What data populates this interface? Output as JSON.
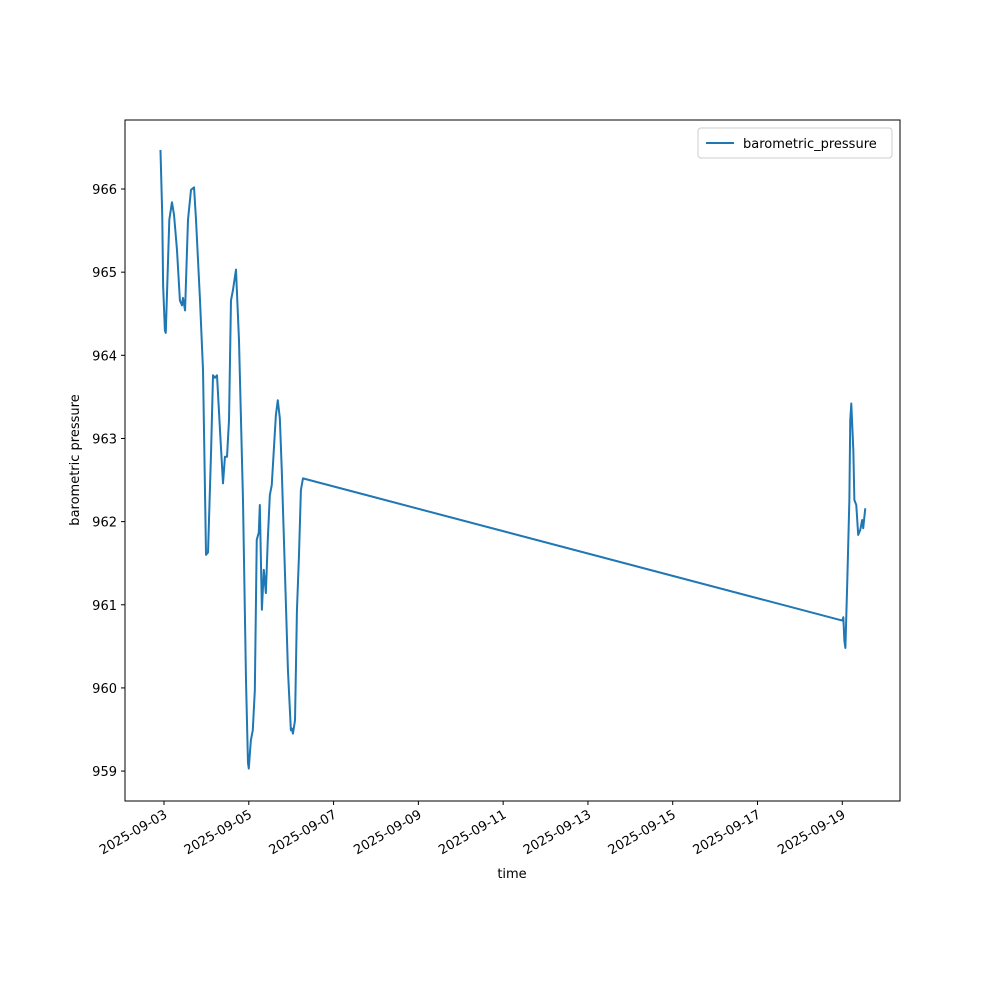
{
  "chart_data": {
    "type": "line",
    "x_label": "time",
    "y_label": "barometric pressure",
    "legend": "upper right",
    "xlim": [
      "2025-09-02 01:55",
      "2025-09-20 08:40"
    ],
    "xticks": [
      "2025-09-03",
      "2025-09-05",
      "2025-09-07",
      "2025-09-09",
      "2025-09-11",
      "2025-09-13",
      "2025-09-15",
      "2025-09-17",
      "2025-09-19"
    ],
    "ylim": [
      958.64,
      966.83
    ],
    "yticks": [
      959,
      960,
      961,
      962,
      963,
      964,
      965,
      966
    ],
    "x": [
      "2025-09-02 22:00",
      "2025-09-02 23:00",
      "2025-09-02 23:30",
      "2025-09-03 00:30",
      "2025-09-03 01:00",
      "2025-09-03 03:00",
      "2025-09-03 04:30",
      "2025-09-03 05:40",
      "2025-09-03 07:20",
      "2025-09-03 09:00",
      "2025-09-03 10:10",
      "2025-09-03 10:45",
      "2025-09-03 11:55",
      "2025-09-03 13:35",
      "2025-09-03 15:17",
      "2025-09-03 17:00",
      "2025-09-03 18:07",
      "2025-09-03 20:23",
      "2025-09-03 22:05",
      "2025-09-03 23:47",
      "2025-09-04 00:55",
      "2025-09-04 02:40",
      "2025-09-04 03:45",
      "2025-09-04 04:50",
      "2025-09-04 06:00",
      "2025-09-04 07:42",
      "2025-09-04 09:24",
      "2025-09-04 10:30",
      "2025-09-04 11:40",
      "2025-09-04 12:48",
      "2025-09-04 13:55",
      "2025-09-04 15:00",
      "2025-09-04 16:45",
      "2025-09-04 18:27",
      "2025-09-04 20:43",
      "2025-09-04 22:25",
      "2025-09-04 23:32",
      "2025-09-05 00:00",
      "2025-09-05 01:10",
      "2025-09-05 02:15",
      "2025-09-05 03:25",
      "2025-09-05 04:30",
      "2025-09-05 05:40",
      "2025-09-05 06:15",
      "2025-09-05 07:25",
      "2025-09-05 08:30",
      "2025-09-05 09:40",
      "2025-09-05 10:45",
      "2025-09-05 11:55",
      "2025-09-05 13:00",
      "2025-09-05 14:10",
      "2025-09-05 15:20",
      "2025-09-05 16:25",
      "2025-09-05 17:35",
      "2025-09-05 18:40",
      "2025-09-05 20:25",
      "2025-09-05 22:10",
      "2025-09-05 23:50",
      "2025-09-06 00:25",
      "2025-09-06 01:00",
      "2025-09-06 02:10",
      "2025-09-06 03:15",
      "2025-09-06 04:25",
      "2025-09-06 05:30",
      "2025-09-06 06:40",
      "2025-09-19 00:00",
      "2025-09-19 00:35",
      "2025-09-19 01:10",
      "2025-09-19 01:45",
      "2025-09-19 02:50",
      "2025-09-19 04:00",
      "2025-09-19 04:30",
      "2025-09-19 05:05",
      "2025-09-19 06:15",
      "2025-09-19 06:50",
      "2025-09-19 07:55",
      "2025-09-19 09:00",
      "2025-09-19 10:10",
      "2025-09-19 11:15",
      "2025-09-19 11:50",
      "2025-09-19 13:00"
    ],
    "series": [
      {
        "name": "barometric_pressure",
        "color": "#1f77b4",
        "values": [
          966.47,
          965.69,
          964.84,
          964.3,
          964.27,
          965.63,
          965.84,
          965.69,
          965.27,
          964.66,
          964.6,
          964.69,
          964.54,
          965.63,
          965.99,
          966.02,
          965.63,
          964.66,
          963.82,
          961.6,
          961.63,
          962.86,
          963.76,
          963.73,
          963.76,
          963.1,
          962.46,
          962.78,
          962.78,
          963.22,
          964.66,
          964.78,
          965.03,
          964.18,
          962.26,
          960.09,
          959.1,
          959.03,
          959.37,
          959.49,
          959.97,
          961.78,
          961.87,
          962.2,
          960.94,
          961.42,
          961.14,
          961.78,
          962.32,
          962.44,
          962.86,
          963.28,
          963.46,
          963.24,
          962.62,
          961.42,
          960.21,
          959.49,
          959.51,
          959.45,
          959.61,
          960.93,
          961.6,
          962.38,
          962.52,
          960.81,
          960.85,
          960.57,
          960.48,
          961.29,
          962.26,
          963.22,
          963.42,
          962.86,
          962.26,
          962.2,
          961.84,
          961.9,
          962.02,
          961.92,
          962.16
        ]
      }
    ]
  }
}
